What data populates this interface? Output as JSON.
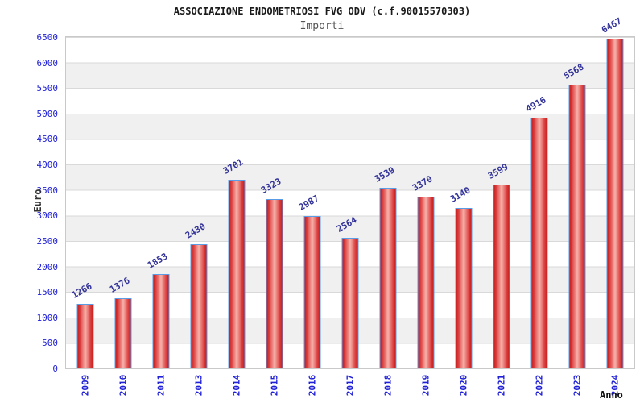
{
  "header": {
    "title": "ASSOCIAZIONE ENDOMETRIOSI FVG ODV (c.f.90015570303)",
    "subtitle": "Importi"
  },
  "chart_data": {
    "type": "bar",
    "title": "ASSOCIAZIONE ENDOMETRIOSI FVG ODV (c.f.90015570303)",
    "subtitle": "Importi",
    "categories": [
      "2009",
      "2010",
      "2011",
      "2013",
      "2014",
      "2015",
      "2016",
      "2017",
      "2018",
      "2019",
      "2020",
      "2021",
      "2022",
      "2023",
      "2024"
    ],
    "values": [
      1266,
      1376,
      1853,
      2430,
      3701,
      3323,
      2987,
      2564,
      3539,
      3370,
      3140,
      3599,
      4916,
      5568,
      6467
    ],
    "xlabel": "Anno",
    "ylabel": "Euro",
    "ylim": [
      0,
      6500
    ],
    "ytick_step": 500,
    "grid": true,
    "legend_position": "none",
    "bar_value_labels_shown": true,
    "bar_value_label_angle_deg": -30,
    "x_tick_label_angle_deg": -90,
    "colors": {
      "bar_edge": "#c41c1c",
      "bar_mid": "#f6b3ab",
      "bar_border": "#5b9ce6",
      "axis_tick_label": "#2020d8",
      "value_label": "#333399",
      "band_white": "#ffffff",
      "band_gray": "#f0f0f0",
      "gridline": "#d9d9d9",
      "plot_border": "#c9c9c9",
      "title": "#1a1a1a",
      "subtitle": "#555555",
      "axis_title": "#333333"
    }
  }
}
